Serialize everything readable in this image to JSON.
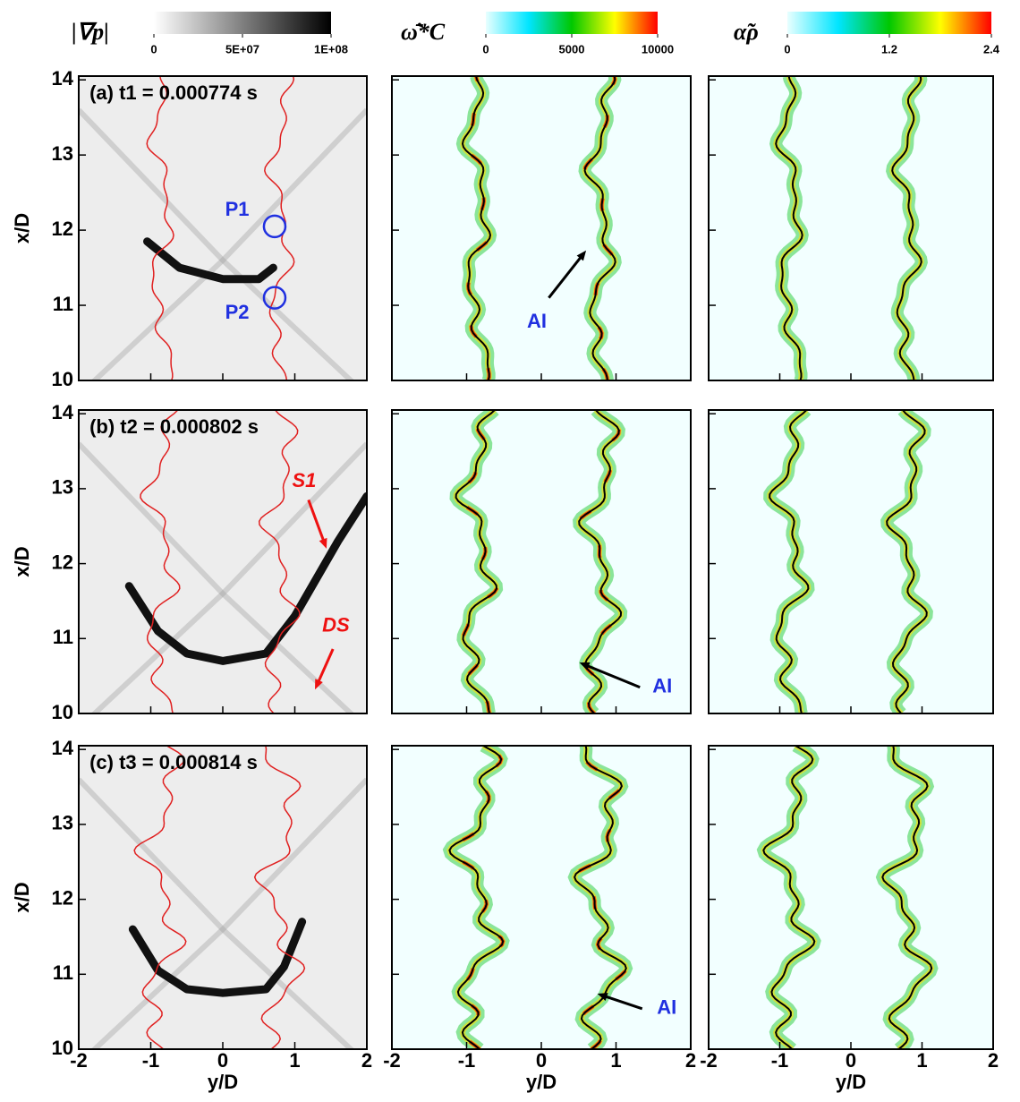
{
  "chart_data": [
    {
      "type": "contour",
      "xlim": [
        -2,
        2
      ],
      "ylim": [
        10,
        14.05
      ],
      "xticks": [
        -2,
        -1,
        0,
        1,
        2
      ],
      "yticks": [
        10,
        11,
        12,
        13,
        14
      ],
      "ylabel": "x/D",
      "front_color": "#e02020",
      "colorbar": {
        "label": "|∇p|",
        "lim": [
          0,
          100000000
        ],
        "ticks": [
          0,
          {
            "value": 50000000,
            "label": "5E+07"
          },
          {
            "value": 100000000,
            "label": "1E+08"
          }
        ],
        "colors": [
          "#ffffff",
          "#000000"
        ]
      },
      "annotations": [
        {
          "text": "(a) t1 = 0.000774 s",
          "x": -1.85,
          "y": 13.81,
          "color": "#000000"
        },
        {
          "text": "P1",
          "x": 0.2,
          "y": 12.26,
          "color": "#2030e0",
          "circle": [
            0.72,
            12.05
          ]
        },
        {
          "text": "P2",
          "x": 0.2,
          "y": 10.89,
          "color": "#2030e0",
          "circle": [
            0.72,
            11.1
          ]
        }
      ]
    },
    {
      "type": "contour",
      "xlim": [
        -2,
        2
      ],
      "ylim": [
        10,
        14.05
      ],
      "xticks": [
        -2,
        -1,
        0,
        1,
        2
      ],
      "yticks": [
        10,
        11,
        12,
        13,
        14
      ],
      "front_color": "#000000",
      "colorbar": {
        "label": "ω̄̇*C",
        "lim": [
          0,
          10000
        ],
        "ticks": [
          0,
          5000,
          10000
        ],
        "colors": [
          "#e8ffff",
          "#00e5ff",
          "#00c800",
          "#ffff00",
          "#ff0000"
        ]
      },
      "annotations": [
        {
          "text": "AI",
          "x": -0.06,
          "y": 10.77,
          "color": "#2030e0",
          "arrow": [
            [
              0.1,
              11.1
            ],
            [
              0.6,
              11.73
            ]
          ]
        }
      ]
    },
    {
      "type": "contour",
      "xlim": [
        -2,
        2
      ],
      "ylim": [
        10,
        14.05
      ],
      "xticks": [
        -2,
        -1,
        0,
        1,
        2
      ],
      "yticks": [
        10,
        11,
        12,
        13,
        14
      ],
      "front_color": "#000000",
      "colorbar": {
        "label": "α̃ρ",
        "lim": [
          0,
          2.4
        ],
        "ticks": [
          0,
          1.2,
          2.4
        ],
        "colors": [
          "#e8ffff",
          "#00e5ff",
          "#00c800",
          "#ffff00",
          "#ff0000"
        ]
      }
    },
    {
      "type": "contour",
      "xlim": [
        -2,
        2
      ],
      "ylim": [
        10,
        14.05
      ],
      "xticks": [
        -2,
        -1,
        0,
        1,
        2
      ],
      "yticks": [
        10,
        11,
        12,
        13,
        14
      ],
      "ylabel": "x/D",
      "front_color": "#e02020",
      "annotations": [
        {
          "text": "(b) t2 = 0.000802 s",
          "x": -1.85,
          "y": 13.81,
          "color": "#000000"
        },
        {
          "text": "S1",
          "x": 1.13,
          "y": 13.09,
          "color": "#ee1111",
          "italic": true,
          "arrow": [
            [
              1.19,
              12.85
            ],
            [
              1.44,
              12.2
            ]
          ]
        },
        {
          "text": "DS",
          "x": 1.57,
          "y": 11.16,
          "color": "#ee1111",
          "italic": true,
          "arrow": [
            [
              1.53,
              10.86
            ],
            [
              1.28,
              10.32
            ]
          ]
        }
      ]
    },
    {
      "type": "contour",
      "xlim": [
        -2,
        2
      ],
      "ylim": [
        10,
        14.05
      ],
      "xticks": [
        -2,
        -1,
        0,
        1,
        2
      ],
      "yticks": [
        10,
        11,
        12,
        13,
        14
      ],
      "front_color": "#000000",
      "annotations": [
        {
          "text": "AI",
          "x": 1.62,
          "y": 10.35,
          "color": "#2030e0",
          "arrow": [
            [
              1.32,
              10.35
            ],
            [
              0.51,
              10.68
            ]
          ]
        }
      ]
    },
    {
      "type": "contour",
      "xlim": [
        -2,
        2
      ],
      "ylim": [
        10,
        14.05
      ],
      "xticks": [
        -2,
        -1,
        0,
        1,
        2
      ],
      "yticks": [
        10,
        11,
        12,
        13,
        14
      ],
      "front_color": "#000000"
    },
    {
      "type": "contour",
      "xlim": [
        -2,
        2
      ],
      "ylim": [
        10,
        14.05
      ],
      "xticks": [
        -2,
        -1,
        0,
        1,
        2
      ],
      "yticks": [
        10,
        11,
        12,
        13,
        14
      ],
      "ylabel": "x/D",
      "xlabel": "y/D",
      "front_color": "#e02020",
      "annotations": [
        {
          "text": "(c) t3 = 0.000814 s",
          "x": -1.85,
          "y": 13.81,
          "color": "#000000"
        }
      ]
    },
    {
      "type": "contour",
      "xlim": [
        -2,
        2
      ],
      "ylim": [
        10,
        14.05
      ],
      "xticks": [
        -2,
        -1,
        0,
        1,
        2
      ],
      "yticks": [
        10,
        11,
        12,
        13,
        14
      ],
      "xlabel": "y/D",
      "front_color": "#000000",
      "annotations": [
        {
          "text": "AI",
          "x": 1.68,
          "y": 10.54,
          "color": "#2030e0",
          "arrow": [
            [
              1.35,
              10.54
            ],
            [
              0.75,
              10.74
            ]
          ]
        }
      ]
    },
    {
      "type": "contour",
      "xlim": [
        -2,
        2
      ],
      "ylim": [
        10,
        14.05
      ],
      "xticks": [
        -2,
        -1,
        0,
        1,
        2
      ],
      "yticks": [
        10,
        11,
        12,
        13,
        14
      ],
      "xlabel": "y/D",
      "front_color": "#000000"
    }
  ]
}
